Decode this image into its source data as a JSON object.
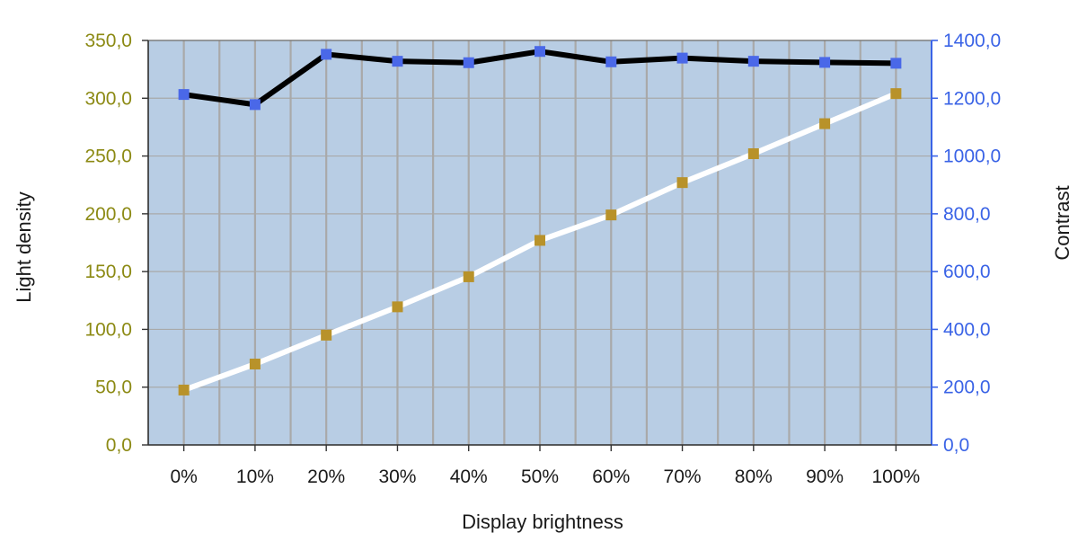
{
  "chart_data": {
    "type": "line",
    "categories": [
      "0%",
      "10%",
      "20%",
      "30%",
      "40%",
      "50%",
      "60%",
      "70%",
      "80%",
      "90%",
      "100%"
    ],
    "xlabel": "Display brightness",
    "ylabel_left": "Light density",
    "ylabel_right": "Contrast",
    "ylim_left": [
      0,
      350
    ],
    "ylim_right": [
      0,
      1400
    ],
    "yticks_left": [
      "0,0",
      "50,0",
      "100,0",
      "150,0",
      "200,0",
      "250,0",
      "300,0",
      "350,0"
    ],
    "yticks_right": [
      "0,0",
      "200,0",
      "400,0",
      "600,0",
      "800,0",
      "1000,0",
      "1200,0",
      "1400,0"
    ],
    "grid": true,
    "series": [
      {
        "axis": "left",
        "line_color": "#ffffff",
        "marker_color": "#b8922a",
        "values": [
          47.5,
          70,
          95,
          119.5,
          145.5,
          177,
          199,
          227,
          252,
          278,
          304
        ]
      },
      {
        "axis": "right",
        "line_color": "#000000",
        "marker_color": "#4a68e8",
        "values": [
          1213,
          1178,
          1352,
          1328,
          1323,
          1362,
          1326,
          1339,
          1328,
          1324,
          1321
        ]
      }
    ],
    "colors": {
      "plot_background": "#b8cde4",
      "gridline": "#a9a9a9",
      "left_axis": "#8c8a14",
      "right_axis": "#3a63e6"
    }
  }
}
